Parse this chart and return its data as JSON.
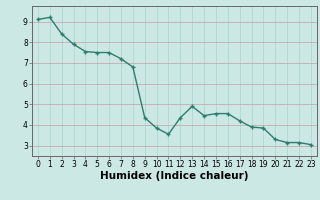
{
  "x": [
    0,
    1,
    2,
    3,
    4,
    5,
    6,
    7,
    8,
    9,
    10,
    11,
    12,
    13,
    14,
    15,
    16,
    17,
    18,
    19,
    20,
    21,
    22,
    23
  ],
  "y": [
    9.1,
    9.2,
    8.4,
    7.9,
    7.55,
    7.5,
    7.5,
    7.2,
    6.8,
    4.35,
    3.85,
    3.55,
    4.35,
    4.9,
    4.45,
    4.55,
    4.55,
    4.2,
    3.9,
    3.85,
    3.3,
    3.15,
    3.15,
    3.05
  ],
  "bg_color": "#cce8e5",
  "line_color": "#2e7d6e",
  "marker_color": "#2e7d6e",
  "grid_color_v": "#aad4d0",
  "grid_color_h": "#c8a0a0",
  "xlabel": "Humidex (Indice chaleur)",
  "ylim": [
    2.5,
    9.75
  ],
  "xlim": [
    -0.5,
    23.5
  ],
  "yticks": [
    3,
    4,
    5,
    6,
    7,
    8,
    9
  ],
  "xticks": [
    0,
    1,
    2,
    3,
    4,
    5,
    6,
    7,
    8,
    9,
    10,
    11,
    12,
    13,
    14,
    15,
    16,
    17,
    18,
    19,
    20,
    21,
    22,
    23
  ],
  "tick_fontsize": 5.5,
  "xlabel_fontsize": 7.5,
  "line_width": 1.0,
  "marker_size": 3.5
}
